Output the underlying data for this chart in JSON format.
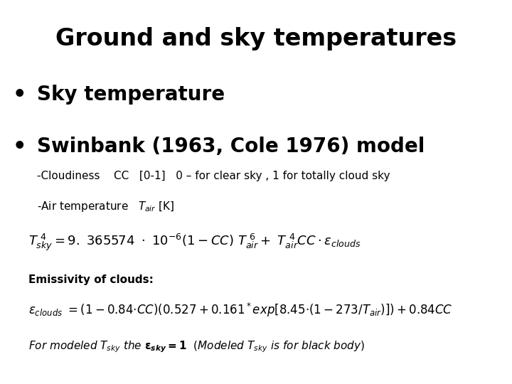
{
  "title": "Ground and sky temperatures",
  "bullet1": "Sky temperature",
  "bullet2": "Swinbank (1963, Cole 1976) model",
  "cloudiness_line": "-Cloudiness    CC   [0-1]   0 – for clear sky , 1 for totally cloud sky",
  "air_temp_line": "-Air temperature   $T_{air}$ [K]",
  "eq1": "$T_{sky}^{4} = 9.\\, 365574 \\cdot 10^{-6}(1-CC)\\, T_{air}^{6}+ T_{air}^{4}CC\\cdot\\varepsilon_{clouds}$",
  "emissivity_label": "Emissivity of clouds:",
  "eq2": "$\\varepsilon_{clouds} = (1-0.84{\\cdot}CC)(0.527+0.161^*exp[8.45{\\cdot}(1-273/T_{air})])+0.84CC$",
  "last_line": "For modeled $T_{sky}$ $the$ $\\boldsymbol{\\varepsilon_{sky}}$$\\boldsymbol{=1}$  $(Modeled$ $T_{sky}$ $is$ $for$ $black$ $body)$",
  "background_color": "#ffffff",
  "text_color": "#000000",
  "title_fontsize": 24,
  "bullet_fontsize": 20,
  "body_fontsize": 11,
  "eq_fontsize": 13,
  "last_fontsize": 11
}
